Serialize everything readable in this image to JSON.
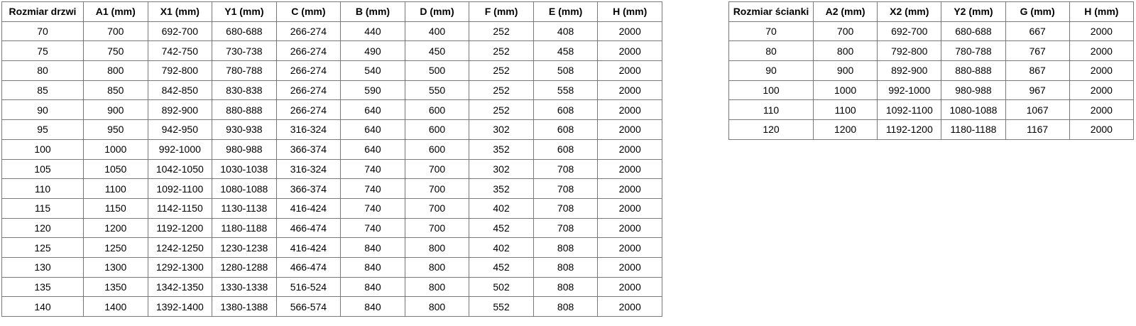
{
  "colors": {
    "background": "#ffffff",
    "border": "#7a7a7a",
    "text": "#000000"
  },
  "tables": [
    {
      "title": "Rozmiar drzwi",
      "headers": [
        "Rozmiar drzwi",
        "A1 (mm)",
        "X1 (mm)",
        "Y1 (mm)",
        "C (mm)",
        "B (mm)",
        "D (mm)",
        "F (mm)",
        "E (mm)",
        "H (mm)"
      ],
      "rows": [
        [
          "70",
          "700",
          "692-700",
          "680-688",
          "266-274",
          "440",
          "400",
          "252",
          "408",
          "2000"
        ],
        [
          "75",
          "750",
          "742-750",
          "730-738",
          "266-274",
          "490",
          "450",
          "252",
          "458",
          "2000"
        ],
        [
          "80",
          "800",
          "792-800",
          "780-788",
          "266-274",
          "540",
          "500",
          "252",
          "508",
          "2000"
        ],
        [
          "85",
          "850",
          "842-850",
          "830-838",
          "266-274",
          "590",
          "550",
          "252",
          "558",
          "2000"
        ],
        [
          "90",
          "900",
          "892-900",
          "880-888",
          "266-274",
          "640",
          "600",
          "252",
          "608",
          "2000"
        ],
        [
          "95",
          "950",
          "942-950",
          "930-938",
          "316-324",
          "640",
          "600",
          "302",
          "608",
          "2000"
        ],
        [
          "100",
          "1000",
          "992-1000",
          "980-988",
          "366-374",
          "640",
          "600",
          "352",
          "608",
          "2000"
        ],
        [
          "105",
          "1050",
          "1042-1050",
          "1030-1038",
          "316-324",
          "740",
          "700",
          "302",
          "708",
          "2000"
        ],
        [
          "110",
          "1100",
          "1092-1100",
          "1080-1088",
          "366-374",
          "740",
          "700",
          "352",
          "708",
          "2000"
        ],
        [
          "115",
          "1150",
          "1142-1150",
          "1130-1138",
          "416-424",
          "740",
          "700",
          "402",
          "708",
          "2000"
        ],
        [
          "120",
          "1200",
          "1192-1200",
          "1180-1188",
          "466-474",
          "740",
          "700",
          "452",
          "708",
          "2000"
        ],
        [
          "125",
          "1250",
          "1242-1250",
          "1230-1238",
          "416-424",
          "840",
          "800",
          "402",
          "808",
          "2000"
        ],
        [
          "130",
          "1300",
          "1292-1300",
          "1280-1288",
          "466-474",
          "840",
          "800",
          "452",
          "808",
          "2000"
        ],
        [
          "135",
          "1350",
          "1342-1350",
          "1330-1338",
          "516-524",
          "840",
          "800",
          "502",
          "808",
          "2000"
        ],
        [
          "140",
          "1400",
          "1392-1400",
          "1380-1388",
          "566-574",
          "840",
          "800",
          "552",
          "808",
          "2000"
        ]
      ]
    },
    {
      "title": "Rozmiar ścianki",
      "headers": [
        "Rozmiar ścianki",
        "A2 (mm)",
        "X2 (mm)",
        "Y2 (mm)",
        "G (mm)",
        "H (mm)"
      ],
      "rows": [
        [
          "70",
          "700",
          "692-700",
          "680-688",
          "667",
          "2000"
        ],
        [
          "80",
          "800",
          "792-800",
          "780-788",
          "767",
          "2000"
        ],
        [
          "90",
          "900",
          "892-900",
          "880-888",
          "867",
          "2000"
        ],
        [
          "100",
          "1000",
          "992-1000",
          "980-988",
          "967",
          "2000"
        ],
        [
          "110",
          "1100",
          "1092-1100",
          "1080-1088",
          "1067",
          "2000"
        ],
        [
          "120",
          "1200",
          "1192-1200",
          "1180-1188",
          "1167",
          "2000"
        ]
      ]
    }
  ]
}
